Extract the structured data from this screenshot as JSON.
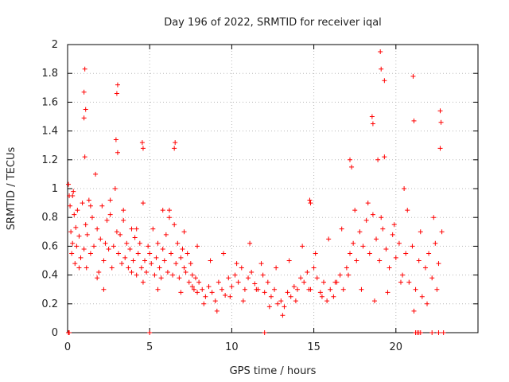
{
  "chart_data": {
    "type": "scatter",
    "title": "Day 196 of 2022, SRMTID for receiver iqal",
    "xlabel": "GPS time / hours",
    "ylabel": "SRMTID / TECUs",
    "xlim": [
      0,
      25
    ],
    "ylim": [
      0,
      2
    ],
    "xticks": [
      0,
      5,
      10,
      15,
      20
    ],
    "xtick_labels": [
      "0",
      "5",
      "10",
      "15",
      "20"
    ],
    "yticks": [
      0,
      0.2,
      0.4,
      0.6,
      0.8,
      1,
      1.2,
      1.4,
      1.6,
      1.8,
      2
    ],
    "ytick_labels": [
      "0",
      "0.2",
      "0.4",
      "0.6",
      "0.8",
      "1",
      "1.2",
      "1.4",
      "1.6",
      "1.8",
      "2"
    ],
    "grid": true,
    "marker": "+",
    "color": "#ff0000",
    "series": [
      {
        "name": "SRMTID",
        "x": [
          0.05,
          0.1,
          0.15,
          0.2,
          0.25,
          0.3,
          0.35,
          0.4,
          0.45,
          0.5,
          0.55,
          0.6,
          0.7,
          0.8,
          0.9,
          1.0,
          1.05,
          1.1,
          1.15,
          1.2,
          1.3,
          1.4,
          1.5,
          1.6,
          1.7,
          1.8,
          1.9,
          2.0,
          2.1,
          2.2,
          2.3,
          2.4,
          2.5,
          2.6,
          2.7,
          2.8,
          2.9,
          3.0,
          3.05,
          3.1,
          3.2,
          3.3,
          3.4,
          3.5,
          3.6,
          3.7,
          3.8,
          3.9,
          4.0,
          4.1,
          4.2,
          4.3,
          4.4,
          4.5,
          4.6,
          4.7,
          4.8,
          4.9,
          5.0,
          5.1,
          5.2,
          5.3,
          5.4,
          5.5,
          5.6,
          5.7,
          5.8,
          5.9,
          6.0,
          6.1,
          6.2,
          6.3,
          6.4,
          6.5,
          6.6,
          6.7,
          6.8,
          6.9,
          7.0,
          7.1,
          7.2,
          7.3,
          7.4,
          7.5,
          7.6,
          7.7,
          7.8,
          7.9,
          8.0,
          8.2,
          8.4,
          8.6,
          8.8,
          9.0,
          9.2,
          9.4,
          9.6,
          9.8,
          10.0,
          10.2,
          10.4,
          10.6,
          10.8,
          11.0,
          11.2,
          11.4,
          11.6,
          11.8,
          12.0,
          12.2,
          12.4,
          12.6,
          12.8,
          13.0,
          13.2,
          13.4,
          13.6,
          13.8,
          14.0,
          14.2,
          14.4,
          14.6,
          14.8,
          15.0,
          15.2,
          15.4,
          15.6,
          15.8,
          16.0,
          16.2,
          16.4,
          16.6,
          16.8,
          17.0,
          17.2,
          17.4,
          17.6,
          17.8,
          18.0,
          18.2,
          18.4,
          18.6,
          18.8,
          19.0,
          19.2,
          19.4,
          19.6,
          19.8,
          20.0,
          20.2,
          20.4,
          20.6,
          20.8,
          21.0,
          21.2,
          21.4,
          21.6,
          21.8,
          22.0,
          22.2,
          22.4,
          22.6,
          22.8,
          1.05,
          1.0,
          1.1,
          3.05,
          3.0,
          4.55,
          4.6,
          6.55,
          6.5,
          18.55,
          18.6,
          19.05,
          19.1,
          19.3,
          21.05,
          21.1,
          22.7,
          22.75,
          2.95,
          1.0,
          0.05,
          0.1,
          5.0,
          12.0,
          21.2,
          21.3,
          21.4,
          21.5,
          22.2,
          22.6,
          22.9,
          0.7,
          1.8,
          2.2,
          3.9,
          4.6,
          5.5,
          6.9,
          7.6,
          8.3,
          9.1,
          9.9,
          10.7,
          11.5,
          12.3,
          13.1,
          13.9,
          14.7,
          15.5,
          16.3,
          17.1,
          17.9,
          18.7,
          19.5,
          20.3,
          21.1,
          21.9,
          22.5,
          0.3,
          1.4,
          2.6,
          3.4,
          4.2,
          5.8,
          6.2,
          7.1,
          7.9,
          8.7,
          9.5,
          10.3,
          11.1,
          11.9,
          12.7,
          13.5,
          14.3,
          15.1,
          15.9,
          16.7,
          17.5,
          18.3,
          19.1,
          19.9,
          20.7,
          21.5,
          22.3,
          14.75,
          14.8,
          17.2,
          17.3,
          18.9,
          19.3,
          20.5,
          22.7
        ],
        "y": [
          1.03,
          0.95,
          0.88,
          0.7,
          0.55,
          0.62,
          0.98,
          0.82,
          0.48,
          0.73,
          0.6,
          0.85,
          0.67,
          0.52,
          0.9,
          0.58,
          1.22,
          0.75,
          0.45,
          0.68,
          0.92,
          0.55,
          0.8,
          0.6,
          1.1,
          0.72,
          0.42,
          0.65,
          0.88,
          0.5,
          0.62,
          0.78,
          0.58,
          0.92,
          0.45,
          0.6,
          1.0,
          0.7,
          1.25,
          0.55,
          0.68,
          0.48,
          0.85,
          0.52,
          0.62,
          0.45,
          0.58,
          0.72,
          0.5,
          0.66,
          0.4,
          0.55,
          0.62,
          0.45,
          0.9,
          0.5,
          0.42,
          0.6,
          0.55,
          0.48,
          0.72,
          0.4,
          0.52,
          0.62,
          0.45,
          0.38,
          0.58,
          0.5,
          0.68,
          0.42,
          0.85,
          0.55,
          0.4,
          0.75,
          0.48,
          0.62,
          0.38,
          0.52,
          0.58,
          0.45,
          0.42,
          0.55,
          0.35,
          0.48,
          0.4,
          0.3,
          0.38,
          0.28,
          0.35,
          0.3,
          0.25,
          0.32,
          0.28,
          0.22,
          0.35,
          0.3,
          0.26,
          0.38,
          0.32,
          0.4,
          0.35,
          0.45,
          0.3,
          0.38,
          0.42,
          0.34,
          0.3,
          0.48,
          0.28,
          0.35,
          0.25,
          0.3,
          0.2,
          0.22,
          0.18,
          0.28,
          0.25,
          0.32,
          0.3,
          0.38,
          0.35,
          0.42,
          0.3,
          0.45,
          0.38,
          0.28,
          0.35,
          0.22,
          0.3,
          0.25,
          0.35,
          0.4,
          0.3,
          0.45,
          0.55,
          0.62,
          0.5,
          0.7,
          0.6,
          0.78,
          0.55,
          0.82,
          0.65,
          0.5,
          0.72,
          0.58,
          0.45,
          0.68,
          0.52,
          0.62,
          0.4,
          0.55,
          0.35,
          0.6,
          0.3,
          0.5,
          0.25,
          0.45,
          0.55,
          0.38,
          0.62,
          0.48,
          0.7,
          1.83,
          1.67,
          1.55,
          1.72,
          1.66,
          1.32,
          1.28,
          1.32,
          1.28,
          1.5,
          1.45,
          1.95,
          1.83,
          1.75,
          1.78,
          1.47,
          1.54,
          1.46,
          1.34,
          1.49,
          0.0,
          0.0,
          0.0,
          0.0,
          0.0,
          0.0,
          0.0,
          0.0,
          0.0,
          0.0,
          0.0,
          0.45,
          0.38,
          0.3,
          0.42,
          0.35,
          0.3,
          0.28,
          0.32,
          0.2,
          0.15,
          0.25,
          0.22,
          0.3,
          0.18,
          0.12,
          0.22,
          0.3,
          0.25,
          0.35,
          0.4,
          0.3,
          0.22,
          0.28,
          0.35,
          0.15,
          0.2,
          0.3,
          0.95,
          0.88,
          0.82,
          0.78,
          0.72,
          0.85,
          0.8,
          0.7,
          0.6,
          0.5,
          0.55,
          0.48,
          0.62,
          0.4,
          0.45,
          0.5,
          0.6,
          0.55,
          0.65,
          0.72,
          0.85,
          0.9,
          0.8,
          0.75,
          0.85,
          0.7,
          0.8,
          0.92,
          0.9,
          1.2,
          1.15,
          1.2,
          1.22,
          1.0,
          1.28
        ]
      }
    ]
  }
}
